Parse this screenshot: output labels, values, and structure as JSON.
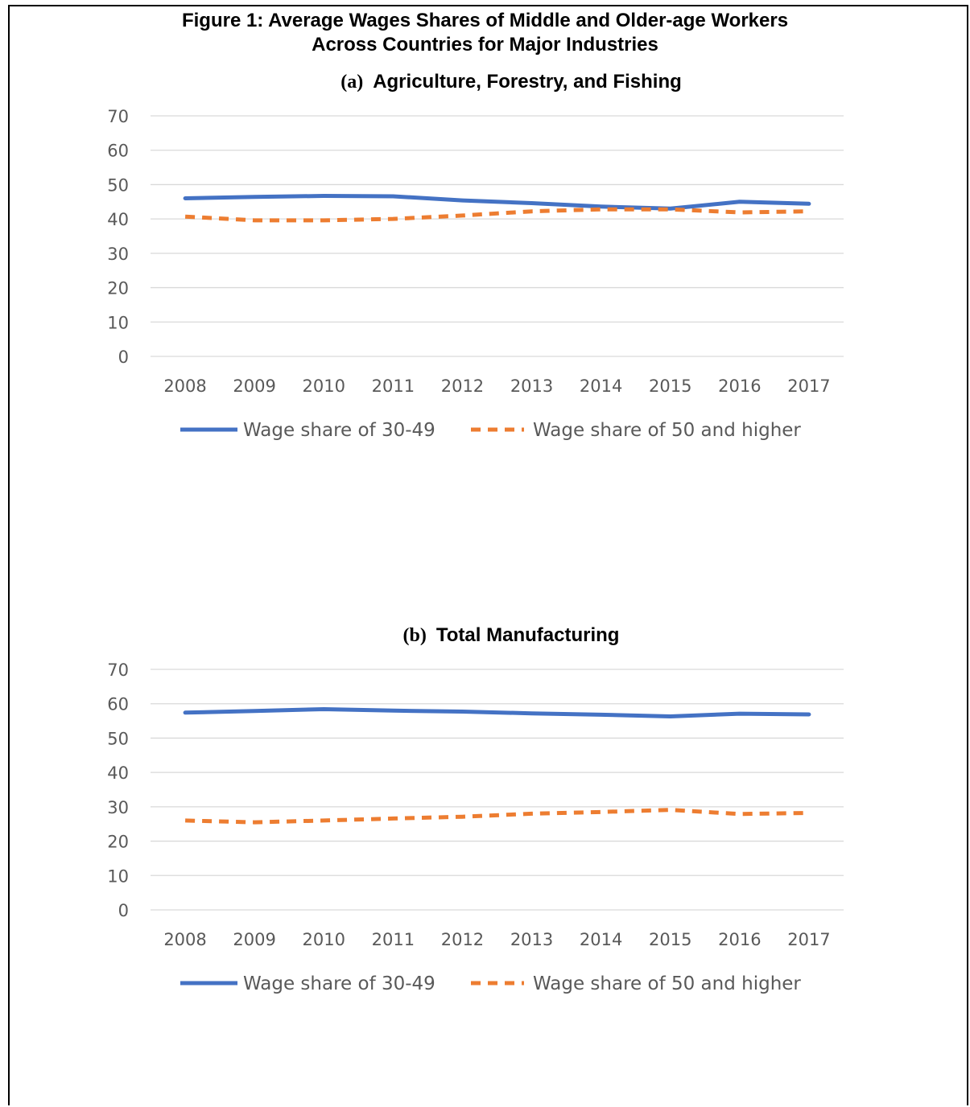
{
  "figure": {
    "title_line1": "Figure 1: Average Wages Shares of Middle and Older-age Workers",
    "title_line2": "Across Countries for Major Industries"
  },
  "colors": {
    "series1": "#4472c4",
    "series2": "#ed7d31",
    "grid": "#d9d9d9",
    "text": "#595959"
  },
  "chart_data": [
    {
      "type": "line",
      "panel_label": "(a)",
      "title": "Agriculture, Forestry, and Fishing",
      "categories": [
        "2008",
        "2009",
        "2010",
        "2011",
        "2012",
        "2013",
        "2014",
        "2015",
        "2016",
        "2017"
      ],
      "ylim": [
        0,
        70
      ],
      "yticks": [
        "0",
        "10",
        "20",
        "30",
        "40",
        "50",
        "60",
        "70"
      ],
      "grid": true,
      "legend_position": "bottom",
      "series": [
        {
          "name": "Wage share of 30-49",
          "style": "solid",
          "values": [
            46.0,
            46.4,
            46.7,
            46.6,
            45.4,
            44.6,
            43.6,
            43.0,
            45.0,
            44.4
          ]
        },
        {
          "name": "Wage share of 50 and higher",
          "style": "dashed",
          "values": [
            40.7,
            39.6,
            39.6,
            40.0,
            41.0,
            42.2,
            42.8,
            42.8,
            41.9,
            42.2
          ]
        }
      ]
    },
    {
      "type": "line",
      "panel_label": "(b)",
      "title": "Total Manufacturing",
      "categories": [
        "2008",
        "2009",
        "2010",
        "2011",
        "2012",
        "2013",
        "2014",
        "2015",
        "2016",
        "2017"
      ],
      "ylim": [
        0,
        70
      ],
      "yticks": [
        "0",
        "10",
        "20",
        "30",
        "40",
        "50",
        "60",
        "70"
      ],
      "grid": true,
      "legend_position": "bottom",
      "series": [
        {
          "name": "Wage share of 30-49",
          "style": "solid",
          "values": [
            57.4,
            57.9,
            58.4,
            58.0,
            57.7,
            57.2,
            56.8,
            56.3,
            57.1,
            56.9
          ]
        },
        {
          "name": "Wage share of 50 and higher",
          "style": "dashed",
          "values": [
            26.0,
            25.5,
            26.0,
            26.6,
            27.1,
            28.0,
            28.5,
            29.1,
            27.9,
            28.2
          ]
        }
      ]
    }
  ]
}
